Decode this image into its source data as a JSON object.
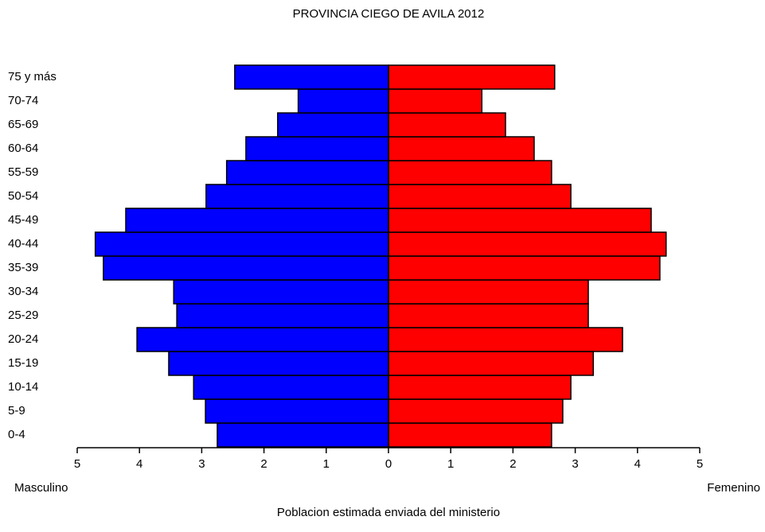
{
  "chart_data": {
    "type": "pyramid",
    "title": "PROVINCIA CIEGO DE AVILA 2012",
    "xlabel": "Poblacion estimada enviada del ministerio",
    "categories": [
      "0-4",
      "5-9",
      "10-14",
      "15-19",
      "20-24",
      "25-29",
      "30-34",
      "35-39",
      "40-44",
      "45-49",
      "50-54",
      "55-59",
      "60-64",
      "65-69",
      "70-74",
      "75 y más"
    ],
    "series": [
      {
        "name": "Masculino",
        "color": "#0000ff",
        "values": [
          2.75,
          2.94,
          3.13,
          3.53,
          4.04,
          3.4,
          3.45,
          4.58,
          4.71,
          4.22,
          2.93,
          2.6,
          2.29,
          1.78,
          1.45,
          2.47
        ]
      },
      {
        "name": "Femenino",
        "color": "#ff0000",
        "values": [
          2.62,
          2.8,
          2.93,
          3.29,
          3.76,
          3.21,
          3.21,
          4.36,
          4.46,
          4.22,
          2.93,
          2.62,
          2.34,
          1.88,
          1.5,
          2.67
        ]
      }
    ],
    "xlim": [
      0,
      5
    ],
    "xticks": [
      0,
      1,
      2,
      3,
      4,
      5
    ]
  }
}
